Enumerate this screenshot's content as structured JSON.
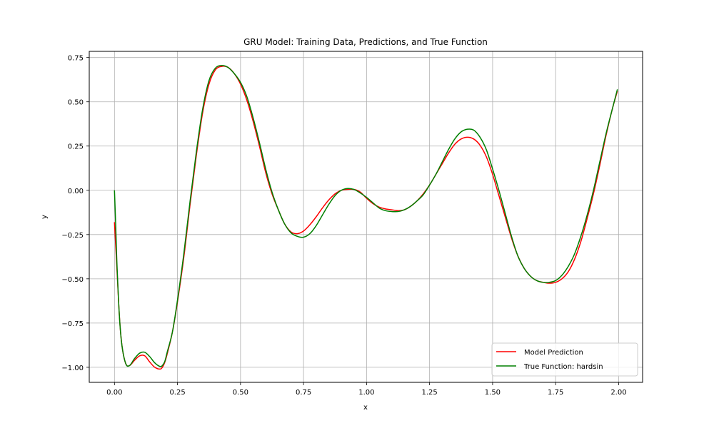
{
  "chart_data": {
    "type": "line",
    "title": "GRU Model: Training Data, Predictions, and True Function",
    "xlabel": "x",
    "ylabel": "y",
    "xlim": [
      -0.1,
      2.095
    ],
    "ylim": [
      -1.085,
      0.785
    ],
    "xticks": [
      0.0,
      0.25,
      0.5,
      0.75,
      1.0,
      1.25,
      1.5,
      1.75,
      2.0
    ],
    "xtick_labels": [
      "0.00",
      "0.25",
      "0.50",
      "0.75",
      "1.00",
      "1.25",
      "1.50",
      "1.75",
      "2.00"
    ],
    "yticks": [
      -1.0,
      -0.75,
      -0.5,
      -0.25,
      0.0,
      0.25,
      0.5,
      0.75
    ],
    "ytick_labels": [
      "−1.00",
      "−0.75",
      "−0.50",
      "−0.25",
      "0.00",
      "0.25",
      "0.50",
      "0.75"
    ],
    "grid": true,
    "legend_position": "bottom-right",
    "series": [
      {
        "name": "Model Prediction",
        "color": "#ff0000",
        "x": [
          0.0,
          0.01,
          0.02,
          0.03,
          0.045,
          0.06,
          0.08,
          0.1,
          0.12,
          0.14,
          0.16,
          0.18,
          0.19,
          0.2,
          0.21,
          0.23,
          0.25,
          0.275,
          0.3,
          0.325,
          0.35,
          0.375,
          0.4,
          0.425,
          0.45,
          0.475,
          0.5,
          0.525,
          0.55,
          0.575,
          0.6,
          0.625,
          0.65,
          0.675,
          0.7,
          0.725,
          0.75,
          0.775,
          0.8,
          0.825,
          0.85,
          0.875,
          0.9,
          0.925,
          0.95,
          0.975,
          1.0,
          1.025,
          1.05,
          1.075,
          1.1,
          1.125,
          1.15,
          1.175,
          1.2,
          1.225,
          1.25,
          1.275,
          1.3,
          1.325,
          1.35,
          1.375,
          1.4,
          1.425,
          1.45,
          1.475,
          1.5,
          1.525,
          1.55,
          1.575,
          1.6,
          1.625,
          1.65,
          1.675,
          1.7,
          1.725,
          1.75,
          1.775,
          1.8,
          1.825,
          1.85,
          1.875,
          1.9,
          1.925,
          1.95,
          1.975,
          1.995
        ],
        "y": [
          -0.18,
          -0.45,
          -0.72,
          -0.88,
          -0.98,
          -0.99,
          -0.96,
          -0.935,
          -0.935,
          -0.97,
          -1.0,
          -1.01,
          -1.0,
          -0.97,
          -0.92,
          -0.8,
          -0.63,
          -0.38,
          -0.08,
          0.2,
          0.44,
          0.6,
          0.68,
          0.7,
          0.695,
          0.66,
          0.6,
          0.51,
          0.39,
          0.25,
          0.1,
          -0.02,
          -0.11,
          -0.19,
          -0.235,
          -0.245,
          -0.23,
          -0.195,
          -0.15,
          -0.1,
          -0.055,
          -0.02,
          0.0,
          0.005,
          0.005,
          -0.01,
          -0.045,
          -0.075,
          -0.095,
          -0.105,
          -0.11,
          -0.115,
          -0.11,
          -0.09,
          -0.06,
          -0.02,
          0.03,
          0.09,
          0.15,
          0.21,
          0.26,
          0.29,
          0.3,
          0.29,
          0.255,
          0.19,
          0.09,
          -0.03,
          -0.15,
          -0.27,
          -0.37,
          -0.44,
          -0.485,
          -0.51,
          -0.52,
          -0.525,
          -0.52,
          -0.5,
          -0.46,
          -0.39,
          -0.29,
          -0.16,
          -0.02,
          0.14,
          0.31,
          0.46,
          0.56
        ]
      },
      {
        "name": "True Function: hardsin",
        "color": "#008000",
        "x": [
          0.0,
          0.005,
          0.01,
          0.02,
          0.03,
          0.045,
          0.06,
          0.08,
          0.1,
          0.12,
          0.14,
          0.16,
          0.18,
          0.19,
          0.2,
          0.21,
          0.23,
          0.25,
          0.275,
          0.3,
          0.325,
          0.35,
          0.375,
          0.4,
          0.425,
          0.45,
          0.475,
          0.5,
          0.525,
          0.55,
          0.575,
          0.6,
          0.625,
          0.65,
          0.675,
          0.7,
          0.725,
          0.75,
          0.775,
          0.8,
          0.825,
          0.85,
          0.875,
          0.9,
          0.925,
          0.95,
          0.975,
          1.0,
          1.025,
          1.05,
          1.075,
          1.1,
          1.125,
          1.15,
          1.175,
          1.2,
          1.225,
          1.25,
          1.275,
          1.3,
          1.325,
          1.35,
          1.375,
          1.4,
          1.425,
          1.45,
          1.475,
          1.5,
          1.525,
          1.55,
          1.575,
          1.6,
          1.625,
          1.65,
          1.675,
          1.7,
          1.725,
          1.75,
          1.775,
          1.8,
          1.825,
          1.85,
          1.875,
          1.9,
          1.925,
          1.95,
          1.975,
          1.995
        ],
        "y": [
          0.0,
          -0.2,
          -0.42,
          -0.72,
          -0.88,
          -0.98,
          -0.99,
          -0.95,
          -0.92,
          -0.915,
          -0.94,
          -0.975,
          -0.995,
          -0.99,
          -0.965,
          -0.91,
          -0.8,
          -0.62,
          -0.36,
          -0.06,
          0.22,
          0.46,
          0.62,
          0.69,
          0.705,
          0.695,
          0.66,
          0.61,
          0.53,
          0.41,
          0.27,
          0.12,
          -0.01,
          -0.11,
          -0.19,
          -0.24,
          -0.26,
          -0.265,
          -0.245,
          -0.2,
          -0.14,
          -0.08,
          -0.03,
          0.0,
          0.01,
          0.005,
          -0.015,
          -0.04,
          -0.07,
          -0.1,
          -0.115,
          -0.12,
          -0.12,
          -0.11,
          -0.09,
          -0.06,
          -0.025,
          0.03,
          0.09,
          0.16,
          0.23,
          0.29,
          0.33,
          0.345,
          0.34,
          0.3,
          0.23,
          0.12,
          0.0,
          -0.13,
          -0.26,
          -0.37,
          -0.44,
          -0.485,
          -0.51,
          -0.52,
          -0.52,
          -0.51,
          -0.48,
          -0.43,
          -0.36,
          -0.26,
          -0.14,
          0.0,
          0.16,
          0.32,
          0.46,
          0.57
        ]
      }
    ]
  }
}
